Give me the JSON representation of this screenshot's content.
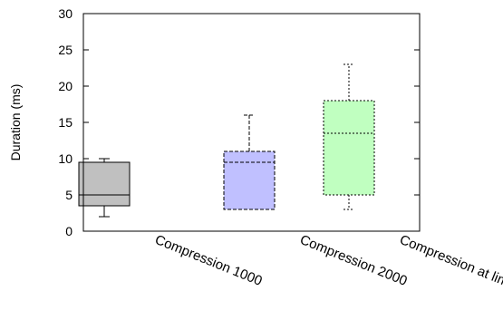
{
  "chart_data": {
    "type": "box",
    "title": "",
    "xlabel": "",
    "ylabel": "Duration (ms)",
    "ylim": [
      0,
      30
    ],
    "yticks": [
      0,
      5,
      10,
      15,
      20,
      25,
      30
    ],
    "grid": false,
    "categories": [
      "Compression 1000",
      "Compression 2000",
      "Compression at limit"
    ],
    "boxes": [
      {
        "category": "Compression 1000",
        "min": 2,
        "q1": 3.5,
        "median": 5,
        "q3": 9.5,
        "max": 10,
        "color": "#c0c0c0",
        "line_style": "solid"
      },
      {
        "category": "Compression 2000",
        "min": 3,
        "q1": 3,
        "median": 9.5,
        "q3": 11,
        "max": 16,
        "color": "#c0c0ff",
        "line_style": "dashed"
      },
      {
        "category": "Compression at limit",
        "min": 3,
        "q1": 5,
        "median": 13.5,
        "q3": 18,
        "max": 23,
        "color": "#c0ffc0",
        "line_style": "dotted"
      }
    ]
  }
}
